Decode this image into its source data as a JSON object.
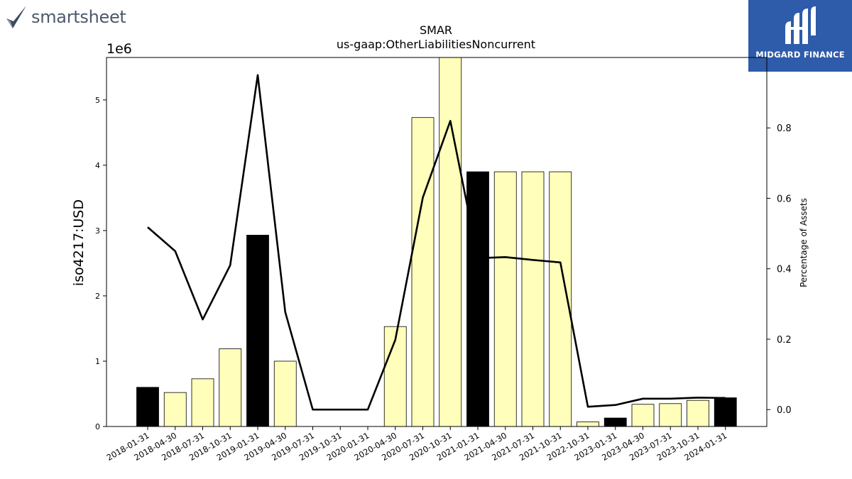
{
  "branding": {
    "left_logo_text": "smartsheet",
    "right_logo_text": "MIDGARD FINANCE"
  },
  "chart_data": {
    "type": "bar",
    "title": "SMAR",
    "subtitle": "us-gaap:OtherLiabilitiesNoncurrent",
    "ylabel": "iso4217:USD",
    "y_offset_label": "1e6",
    "ylabel_right": "Percentage of Assets",
    "categories": [
      "2018-01-31",
      "2018-04-30",
      "2018-07-31",
      "2018-10-31",
      "2019-01-31",
      "2019-04-30",
      "2019-07-31",
      "2019-10-31",
      "2020-01-31",
      "2020-04-30",
      "2020-07-31",
      "2020-10-31",
      "2021-01-31",
      "2021-04-30",
      "2021-07-31",
      "2021-10-31",
      "2022-10-31",
      "2023-01-31",
      "2023-04-30",
      "2023-07-31",
      "2023-10-31",
      "2024-01-31"
    ],
    "values": [
      600000,
      520000,
      730000,
      1190000,
      2930000,
      1000000,
      0,
      0,
      0,
      1530000,
      4730000,
      5700000,
      3900000,
      3900000,
      3900000,
      3900000,
      70000,
      130000,
      340000,
      350000,
      400000,
      440000
    ],
    "bar_colors": [
      "#000000",
      "#ffffbb",
      "#ffffbb",
      "#ffffbb",
      "#000000",
      "#ffffbb",
      "#ffffbb",
      "#ffffbb",
      "#ffffbb",
      "#ffffbb",
      "#ffffbb",
      "#ffffbb",
      "#000000",
      "#ffffbb",
      "#ffffbb",
      "#ffffbb",
      "#ffffbb",
      "#000000",
      "#ffffbb",
      "#ffffbb",
      "#ffffbb",
      "#000000"
    ],
    "line_series": {
      "axis": "right",
      "values": [
        0.518,
        0.45,
        0.256,
        0.41,
        0.95,
        0.277,
        0,
        0,
        0,
        0.198,
        0.602,
        0.82,
        0.43,
        0.433,
        0.425,
        0.418,
        0.008,
        0.013,
        0.031,
        0.031,
        0.034,
        0.033
      ]
    },
    "ylim": [
      0,
      5650000
    ],
    "yticks": [
      0,
      1000000,
      2000000,
      3000000,
      4000000,
      5000000
    ],
    "ytick_labels": [
      "0",
      "1",
      "2",
      "3",
      "4",
      "5"
    ],
    "ylim_right": [
      -0.048,
      1.0
    ],
    "yticks_right": [
      0.0,
      0.2,
      0.4,
      0.6,
      0.8
    ],
    "ytick_labels_right": [
      "0.0",
      "0.2",
      "0.4",
      "0.6",
      "0.8"
    ],
    "grid": false,
    "legend": "none"
  }
}
